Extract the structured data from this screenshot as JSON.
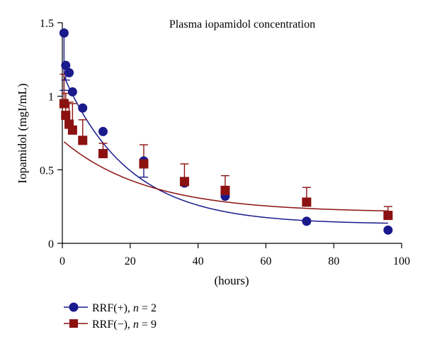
{
  "chart_data": {
    "type": "scatter",
    "title": "Plasma iopamidol concentration",
    "xlabel": "(hours)",
    "ylabel": "Iopamidol (mgI/mL)",
    "xlim": [
      0,
      100
    ],
    "ylim": [
      0,
      1.5
    ],
    "xticks": [
      0,
      20,
      40,
      60,
      80,
      100
    ],
    "yticks": [
      0,
      0.5,
      1,
      1.5
    ],
    "xtick_labels": [
      "0",
      "20",
      "40",
      "60",
      "80",
      "100"
    ],
    "ytick_labels": [
      "0",
      "0.5",
      "1",
      "1.5"
    ],
    "grid": false,
    "legend_position": "bottom-left",
    "series": [
      {
        "name": "RRF(+), n = 2",
        "legend_label": "RRF(+), ",
        "legend_n_value": " = 2",
        "marker": "circle",
        "color": "#1a1a8c",
        "x": [
          0.5,
          1,
          2,
          3,
          6,
          12,
          24,
          36,
          48,
          72,
          96
        ],
        "y": [
          1.43,
          1.21,
          1.16,
          1.03,
          0.92,
          0.76,
          0.56,
          0.41,
          0.32,
          0.15,
          0.09
        ],
        "error_minus": [
          0.39,
          0.1,
          0.0,
          0.0,
          0.0,
          0.0,
          0.11,
          0.0,
          0.0,
          0.0,
          0.0
        ],
        "fit_curve": {
          "model": "mono-exponential",
          "c0": 1.16,
          "k": 0.052,
          "plateau": 0.13
        }
      },
      {
        "name": "RRF(−), n = 9",
        "legend_label": "RRF(−), ",
        "legend_n_value": " = 9",
        "marker": "square",
        "color": "#8c1111",
        "x": [
          0.5,
          1,
          2,
          3,
          6,
          12,
          24,
          36,
          48,
          72,
          96
        ],
        "y": [
          0.95,
          0.87,
          0.81,
          0.77,
          0.7,
          0.61,
          0.54,
          0.42,
          0.36,
          0.28,
          0.19
        ],
        "error_plus": [
          0.2,
          0.15,
          0.15,
          0.18,
          0.14,
          0.07,
          0.13,
          0.12,
          0.1,
          0.1,
          0.06
        ],
        "fit_curve": {
          "model": "mono-exponential",
          "c0": 0.7,
          "k": 0.04,
          "plateau": 0.21
        }
      }
    ]
  }
}
